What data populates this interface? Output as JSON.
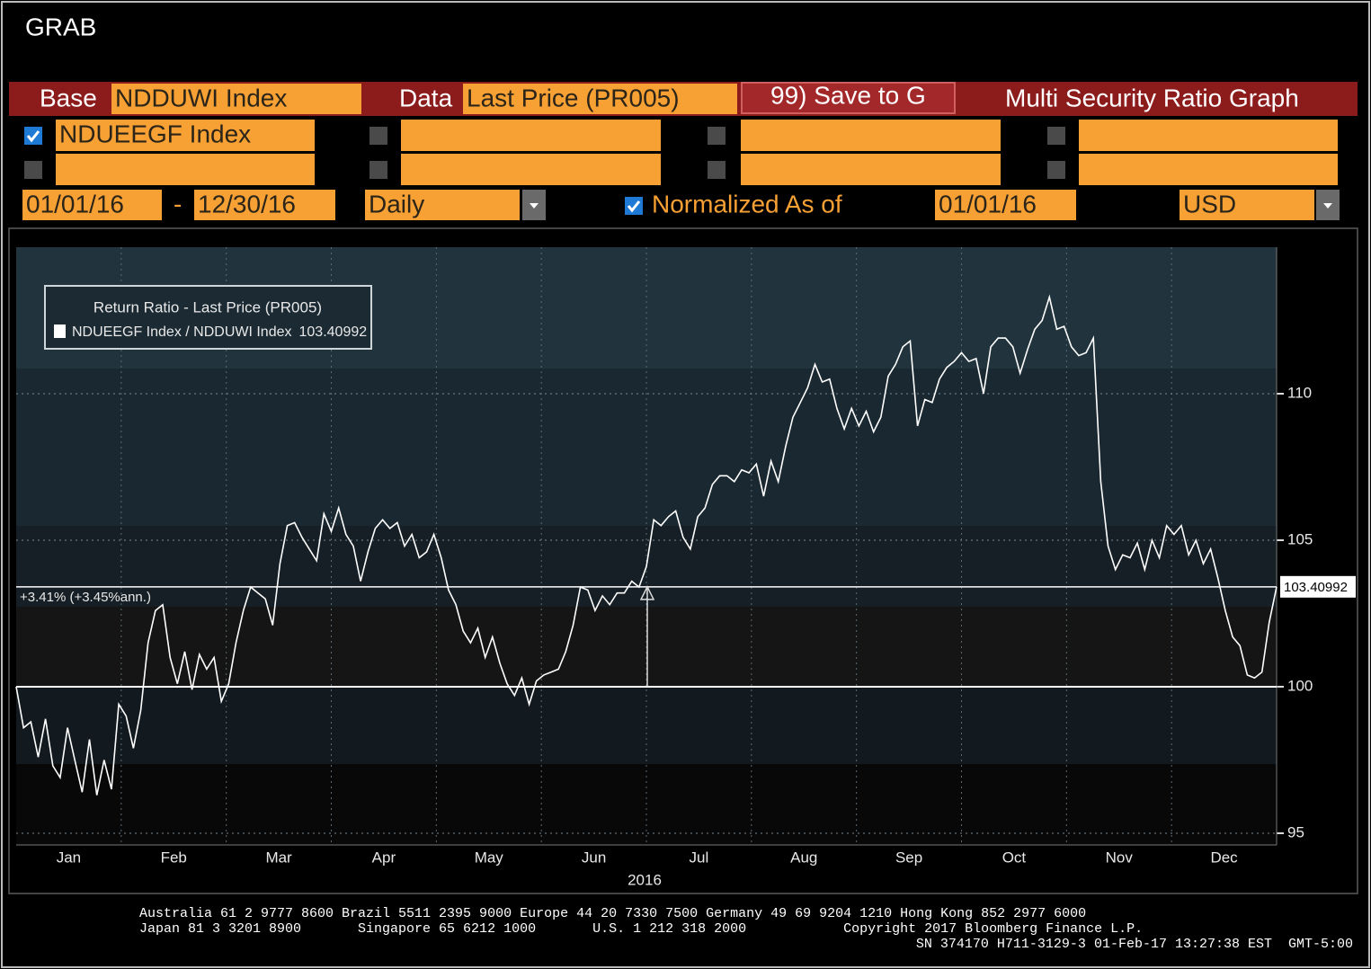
{
  "header": {
    "title": "GRAB"
  },
  "toolbar": {
    "base_label": "Base",
    "base_value": "NDDUWI Index",
    "data_label": "Data",
    "data_value": "Last Price (PR005)",
    "button": "99) Save to G",
    "function_title": "Multi Security Ratio Graph"
  },
  "securities": [
    {
      "checked": true,
      "value": "NDUEEGF Index"
    }
  ],
  "range": {
    "start": "01/01/16",
    "separator": "-",
    "end": "12/30/16",
    "frequency": "Daily",
    "normalized_checked": true,
    "normalized_label": "Normalized As of",
    "normalized_date": "01/01/16",
    "currency": "USD"
  },
  "chart_data": {
    "type": "line",
    "legend_title": "Return Ratio - Last Price (PR005)",
    "series": [
      {
        "name": "NDUEEGF Index / NDDUWI Index",
        "color": "#ffffff",
        "values": [
          100,
          98.6,
          98.8,
          97.6,
          98.9,
          97.3,
          96.9,
          98.6,
          97.5,
          96.4,
          98.2,
          96.3,
          97.5,
          96.5,
          99.4,
          99.0,
          97.9,
          99.2,
          101.5,
          102.6,
          102.8,
          101.0,
          100.1,
          101.2,
          99.9,
          101.1,
          100.6,
          101.0,
          99.5,
          100.1,
          101.5,
          102.6,
          103.4,
          103.2,
          103.0,
          102.1,
          104.2,
          105.5,
          105.6,
          105.1,
          104.7,
          104.3,
          105.9,
          105.3,
          106.1,
          105.2,
          104.8,
          103.6,
          104.6,
          105.4,
          105.7,
          105.4,
          105.6,
          104.8,
          105.2,
          104.4,
          104.6,
          105.2,
          104.4,
          103.3,
          102.8,
          101.9,
          101.5,
          102.0,
          101.0,
          101.7,
          100.8,
          100.1,
          99.7,
          100.3,
          99.4,
          100.2,
          100.4,
          100.5,
          100.6,
          101.2,
          102.1,
          103.4,
          103.3,
          102.6,
          103.1,
          102.8,
          103.2,
          103.2,
          103.6,
          103.4,
          104.1,
          105.7,
          105.5,
          105.8,
          106.0,
          105.1,
          104.7,
          105.8,
          106.1,
          106.9,
          107.2,
          107.2,
          107.0,
          107.4,
          107.3,
          107.6,
          106.5,
          107.7,
          107.0,
          108.2,
          109.2,
          109.7,
          110.2,
          111.0,
          110.4,
          110.5,
          109.5,
          108.8,
          109.5,
          108.9,
          109.4,
          108.7,
          109.2,
          110.6,
          111.0,
          111.6,
          111.8,
          108.9,
          109.8,
          109.7,
          110.5,
          110.9,
          111.1,
          111.4,
          111.1,
          111.2,
          110.0,
          111.6,
          111.9,
          111.9,
          111.6,
          110.7,
          111.5,
          112.2,
          112.5,
          113.3,
          112.2,
          112.3,
          111.6,
          111.3,
          111.4,
          111.9,
          107.0,
          104.8,
          104.0,
          104.5,
          104.4,
          104.9,
          104.0,
          105.0,
          104.4,
          105.5,
          105.2,
          105.5,
          104.5,
          105.0,
          104.2,
          104.7,
          103.7,
          102.6,
          101.7,
          101.4,
          100.4,
          100.3,
          100.5,
          102.2,
          103.40992
        ]
      }
    ],
    "xtick_labels": [
      "Jan",
      "Feb",
      "Mar",
      "Apr",
      "May",
      "Jun",
      "Jul",
      "Aug",
      "Sep",
      "Oct",
      "Nov",
      "Dec"
    ],
    "xlabel": "2016",
    "ylim": [
      94.6,
      115
    ],
    "yticks": [
      95,
      100,
      105,
      110
    ],
    "grid": true,
    "baseline": 100,
    "annotation": "+3.41% (+3.45%ann.)"
  },
  "footer": {
    "lines": [
      "Australia 61 2 9777 8600 Brazil 5511 2395 9000 Europe 44 20 7330 7500 Germany 49 69 9204 1210 Hong Kong 852 2977 6000",
      "Japan 81 3 3201 8900       Singapore 65 6212 1000       U.S. 1 212 318 2000            Copyright 2017 Bloomberg Finance L.P.",
      "SN 374170 H711-3129-3 01-Feb-17 13:27:38 EST  GMT-5:00"
    ]
  }
}
